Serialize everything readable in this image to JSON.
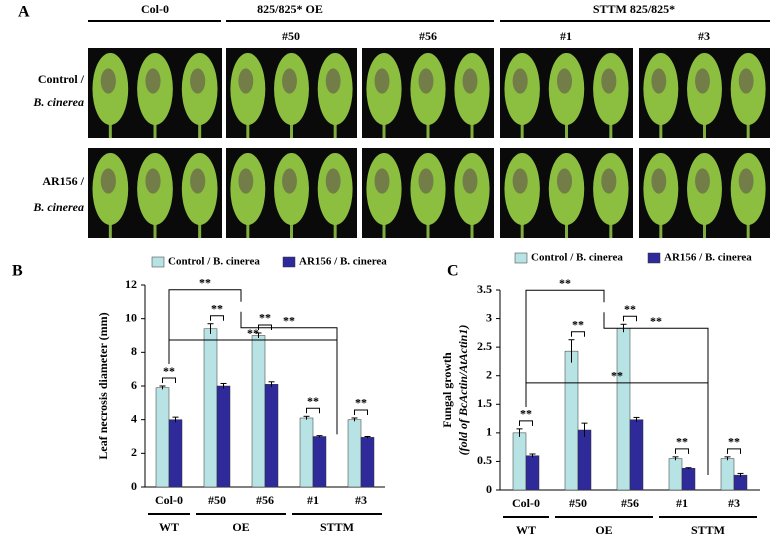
{
  "panel_a": {
    "label": "A",
    "headers": [
      "Col-0",
      "825/825* OE",
      "STTM 825/825*"
    ],
    "lines": [
      "#50",
      "#56",
      "#1",
      "#3"
    ],
    "rows": [
      [
        "Control /",
        "B. cinerea"
      ],
      [
        "AR156 /",
        "B. cinerea"
      ]
    ]
  },
  "chart_data": [
    {
      "type": "bar",
      "panel": "B",
      "y_label": "Leaf necrosis diameter (mm)",
      "categories": [
        "Col-0",
        "#50",
        "#56",
        "#1",
        "#3"
      ],
      "groups": [
        "WT",
        "OE",
        "STTM"
      ],
      "series": [
        {
          "name": "Control / B. cinerea",
          "color": "#b7e3e4",
          "values": [
            5.9,
            9.4,
            9.0,
            4.1,
            4.0
          ],
          "errors": [
            0.1,
            0.3,
            0.15,
            0.1,
            0.1
          ]
        },
        {
          "name": "AR156 / B. cinerea",
          "color": "#2e2a9a",
          "values": [
            4.0,
            6.0,
            6.1,
            3.0,
            2.95
          ],
          "errors": [
            0.15,
            0.15,
            0.15,
            0.05,
            0.05
          ]
        }
      ],
      "ylim": [
        0,
        12
      ],
      "yticks": [
        0,
        2,
        4,
        6,
        8,
        10,
        12
      ],
      "annotations": [
        "**",
        "**",
        "**",
        "**",
        "**",
        "**",
        "**",
        "**"
      ]
    },
    {
      "type": "bar",
      "panel": "C",
      "y_label": [
        "Fungal growth",
        "(fold of BcActin/AtActin1)"
      ],
      "categories": [
        "Col-0",
        "#50",
        "#56",
        "#1",
        "#3"
      ],
      "groups": [
        "WT",
        "OE",
        "STTM"
      ],
      "series": [
        {
          "name": "Control / B. cinerea",
          "color": "#b7e3e4",
          "values": [
            1.0,
            2.43,
            2.83,
            0.55,
            0.55
          ],
          "errors": [
            0.07,
            0.2,
            0.07,
            0.03,
            0.03
          ]
        },
        {
          "name": "AR156 / B. cinerea",
          "color": "#2e2a9a",
          "values": [
            0.6,
            1.05,
            1.23,
            0.38,
            0.26
          ],
          "errors": [
            0.03,
            0.12,
            0.04,
            0.01,
            0.03
          ]
        }
      ],
      "ylim": [
        0,
        3.5
      ],
      "yticks": [
        0,
        0.5,
        1,
        1.5,
        2,
        2.5,
        3,
        3.5
      ],
      "annotations": [
        "**",
        "**",
        "**",
        "**",
        "**",
        "**",
        "**",
        "**"
      ]
    }
  ]
}
